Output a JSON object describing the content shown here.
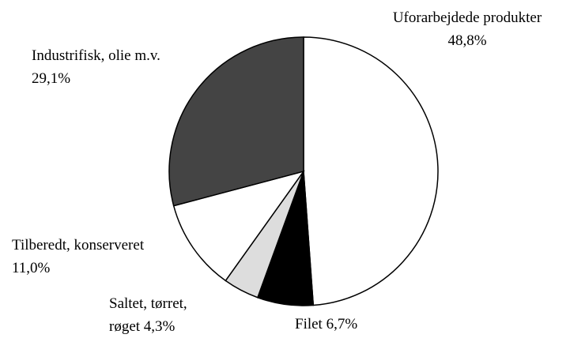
{
  "chart_data": {
    "type": "pie",
    "categories": [
      "Uforarbejdede produkter",
      "Filet",
      "Saltet, tørret, røget",
      "Tilberedt, konserveret",
      "Industrifisk, olie m.v."
    ],
    "values": [
      48.8,
      6.7,
      4.3,
      11.0,
      29.1
    ],
    "value_labels": [
      "48,8%",
      "6,7%",
      "4,3%",
      "11,0%",
      "29,1%"
    ],
    "colors": [
      "#ffffff",
      "#000000",
      "#dddddd",
      "#ffffff",
      "#444444"
    ]
  }
}
